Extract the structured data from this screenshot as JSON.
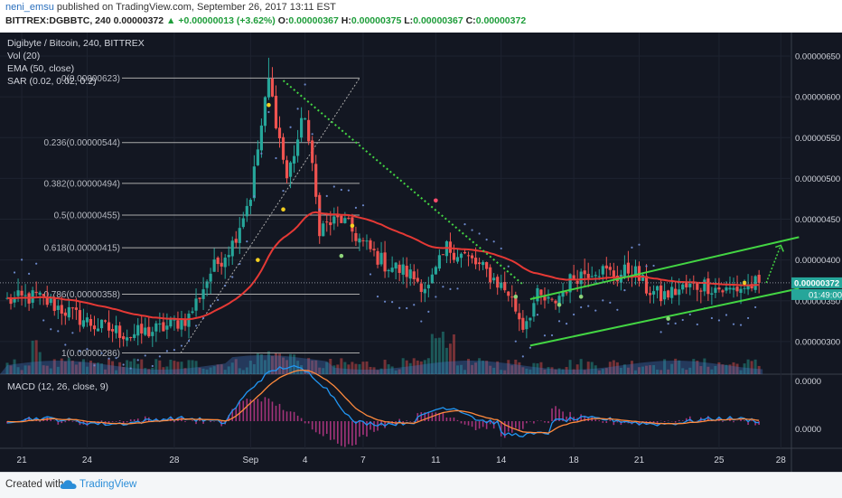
{
  "header": {
    "author": "neni_emsu",
    "published": "published on TradingView.com, September 26, 2017 13:11 EST",
    "symbol": "BITTREX:DGBBTC, 240",
    "last": "0.00000372",
    "change": "+0.00000013 (+3.62%)",
    "o_label": "O:",
    "o": "0.00000367",
    "h_label": "H:",
    "h": "0.00000375",
    "l_label": "L:",
    "l": "0.00000367",
    "c_label": "C:",
    "c": "0.00000372"
  },
  "legend": {
    "title": "Digibyte / Bitcoin, 240, BITTREX",
    "vol": "Vol (20)",
    "ema": "EMA (50, close)",
    "sar": "SAR (0.02, 0.02, 0.2)",
    "macd": "MACD (12, 26, close, 9)"
  },
  "badges": {
    "price": "0.00000372",
    "countdown": "01:49:00"
  },
  "footer": {
    "created": "Created with",
    "brand": "TradingView"
  },
  "colors": {
    "background": "#131722",
    "up": "#26a69a",
    "down": "#ef5350",
    "ema": "#e53935",
    "channel": "#43d543",
    "sar": "#6a86c8",
    "fib": "#aaaaaa",
    "macd_line": "#2196f3",
    "signal_line": "#ff8a3d"
  },
  "chart_data": {
    "type": "candlestick",
    "ylim": [
      2.6e-06,
      6.6e-06
    ],
    "y_ticks": [
      "0.00000300",
      "0.00000350",
      "0.00000400",
      "0.00000450",
      "0.00000500",
      "0.00000550",
      "0.00000600",
      "0.00000650"
    ],
    "y_tick_values": [
      3.0,
      3.5,
      4.0,
      4.5,
      5.0,
      5.5,
      6.0,
      6.5
    ],
    "x_ticks": [
      "21",
      "24",
      "28",
      "Sep",
      "4",
      "7",
      "11",
      "14",
      "18",
      "21",
      "25",
      "28"
    ],
    "x_tick_index": [
      4,
      22,
      46,
      67,
      82,
      98,
      118,
      136,
      156,
      174,
      196,
      213
    ],
    "n_bars": 208,
    "price_path_key": [
      [
        0,
        3.5
      ],
      [
        8,
        3.55
      ],
      [
        16,
        3.38
      ],
      [
        24,
        3.2
      ],
      [
        34,
        3.08
      ],
      [
        42,
        3.15
      ],
      [
        50,
        3.3
      ],
      [
        56,
        3.85
      ],
      [
        62,
        4.2
      ],
      [
        67,
        4.8
      ],
      [
        72,
        6.2
      ],
      [
        77,
        5.0
      ],
      [
        82,
        5.8
      ],
      [
        86,
        4.4
      ],
      [
        92,
        4.5
      ],
      [
        98,
        4.2
      ],
      [
        104,
        3.95
      ],
      [
        110,
        3.85
      ],
      [
        116,
        3.65
      ],
      [
        121,
        4.15
      ],
      [
        126,
        4.05
      ],
      [
        132,
        3.85
      ],
      [
        138,
        3.6
      ],
      [
        142,
        3.2
      ],
      [
        146,
        3.55
      ],
      [
        150,
        3.45
      ],
      [
        156,
        3.8
      ],
      [
        162,
        3.9
      ],
      [
        168,
        3.8
      ],
      [
        172,
        3.9
      ],
      [
        176,
        3.65
      ],
      [
        180,
        3.55
      ],
      [
        186,
        3.65
      ],
      [
        192,
        3.7
      ],
      [
        198,
        3.62
      ],
      [
        204,
        3.68
      ],
      [
        207,
        3.72
      ]
    ],
    "fib_levels": [
      {
        "label": "0(0.00000623)",
        "value": 6.23
      },
      {
        "label": "0.236(0.00000544)",
        "value": 5.44
      },
      {
        "label": "0.382(0.00000494)",
        "value": 4.94
      },
      {
        "label": "0.5(0.00000455)",
        "value": 4.55
      },
      {
        "label": "0.618(0.00000415)",
        "value": 4.15
      },
      {
        "label": "0.786(0.00000358)",
        "value": 3.58
      },
      {
        "label": "1(0.00000286)",
        "value": 2.86
      }
    ],
    "channel_upper": [
      [
        144,
        3.52
      ],
      [
        218,
        4.28
      ]
    ],
    "channel_lower": [
      [
        144,
        2.95
      ],
      [
        218,
        3.65
      ]
    ],
    "downtrend_line": [
      [
        76,
        6.2
      ],
      [
        142,
        3.7
      ]
    ],
    "projection": [
      [
        209,
        3.72
      ],
      [
        213,
        4.18
      ],
      [
        214,
        4.15
      ]
    ],
    "current_price": 3.72,
    "macd_ylim": [
      -4e-07,
      5e-07
    ],
    "macd_ticks": [
      "0.0000",
      "0.0000"
    ],
    "macd_tick_values": [
      0,
      3.3e-07
    ]
  }
}
